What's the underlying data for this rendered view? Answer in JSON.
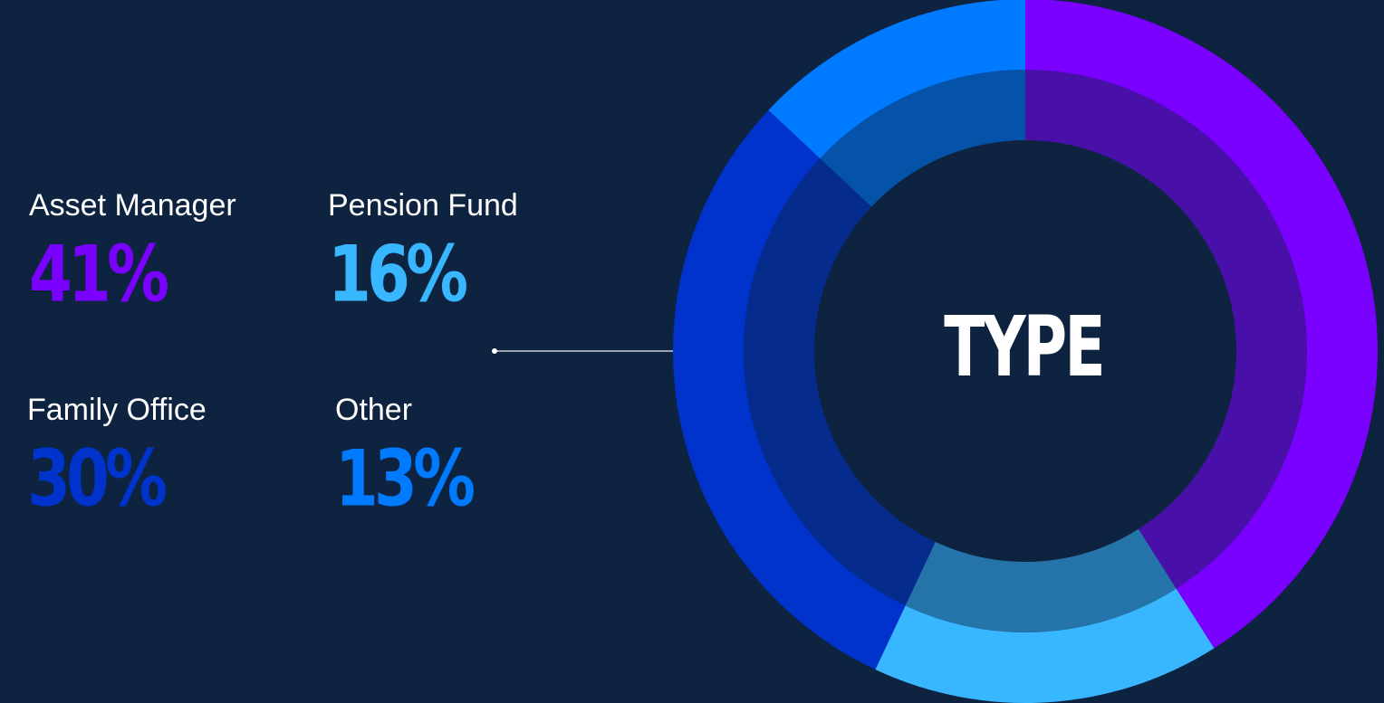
{
  "chart_data": {
    "type": "pie",
    "center_label": "TYPE",
    "categories": [
      "Asset Manager",
      "Pension Fund",
      "Family Office",
      "Other"
    ],
    "values": [
      41,
      16,
      30,
      13
    ],
    "value_labels": [
      "41%",
      "16%",
      "30%",
      "13%"
    ],
    "colors": [
      "#7a00ff",
      "#38b6ff",
      "#0033cc",
      "#007aff"
    ]
  }
}
